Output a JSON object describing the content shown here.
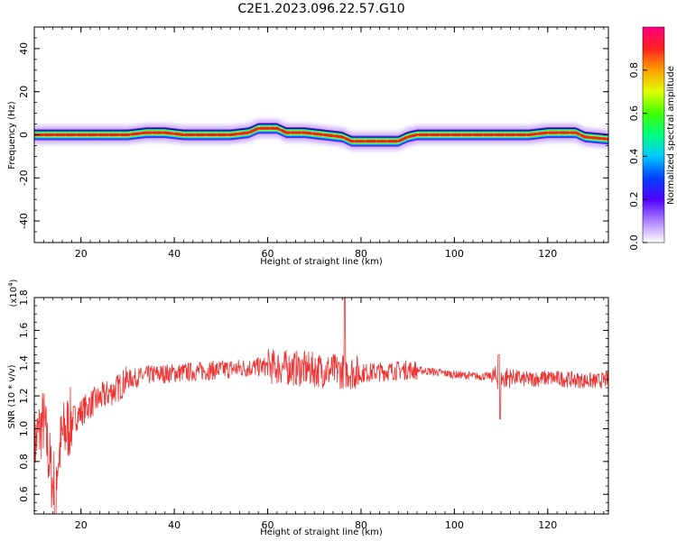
{
  "figure": {
    "title": "C2E1.2023.096.22.57.G10"
  },
  "colors": {
    "snr_line": "#ee3333",
    "band_core": "#ee2222",
    "ridge_line": "#000000"
  },
  "chart_data": [
    {
      "type": "heatmap",
      "xlabel": "Height of straight line (km)",
      "ylabel": "Frequency (Hz)",
      "xlim": [
        10,
        133
      ],
      "ylim": [
        -50,
        50
      ],
      "xticks": [
        20,
        40,
        60,
        80,
        100,
        120
      ],
      "yticks": [
        -40,
        -20,
        0,
        20,
        40
      ],
      "colorbar": {
        "label": "Normalized spectral amplitude",
        "range": [
          0,
          1
        ],
        "ticks": [
          "0.0",
          "0.2",
          "0.4",
          "0.6",
          "0.8"
        ]
      },
      "ridge": {
        "x": [
          10,
          20,
          30,
          34,
          38,
          42,
          52,
          56,
          58,
          62,
          64,
          68,
          72,
          76,
          78,
          80,
          84,
          86,
          88,
          90,
          92,
          100,
          112,
          116,
          120,
          126,
          128,
          133
        ],
        "y": [
          0,
          0,
          0,
          1,
          1,
          0,
          0,
          1,
          3,
          3,
          1,
          1,
          0,
          -1,
          -3,
          -3,
          -3,
          -3,
          -3,
          -1,
          0,
          0,
          0,
          0,
          1,
          1,
          -1,
          -2
        ]
      }
    },
    {
      "type": "line",
      "xlabel": "Height of straight line (km)",
      "ylabel": "SNR (10 * v/v)",
      "scale_label": "(x10",
      "scale_exp": "4",
      "scale_close": ")",
      "xlim": [
        10,
        133
      ],
      "ylim": [
        0.48,
        1.8
      ],
      "xticks": [
        20,
        40,
        60,
        80,
        100,
        120
      ],
      "yticks": [
        "0.6",
        "0.8",
        "1.0",
        "1.2",
        "1.4",
        "1.6",
        "1.8"
      ],
      "series": [
        {
          "x": [
            10,
            12,
            14,
            16,
            18,
            20,
            22,
            25,
            28,
            30,
            35,
            40,
            45,
            50,
            55,
            60,
            65,
            70,
            75,
            77,
            80,
            85,
            90,
            95,
            100,
            105,
            108,
            110,
            112,
            115,
            120,
            125,
            130,
            133
          ],
          "values": [
            0.9,
            1.05,
            0.65,
            0.95,
            1.05,
            1.1,
            1.15,
            1.2,
            1.25,
            1.3,
            1.33,
            1.34,
            1.35,
            1.36,
            1.37,
            1.38,
            1.37,
            1.36,
            1.35,
            1.35,
            1.34,
            1.35,
            1.36,
            1.35,
            1.33,
            1.32,
            1.32,
            1.3,
            1.32,
            1.3,
            1.31,
            1.3,
            1.29,
            1.3
          ]
        }
      ]
    }
  ]
}
